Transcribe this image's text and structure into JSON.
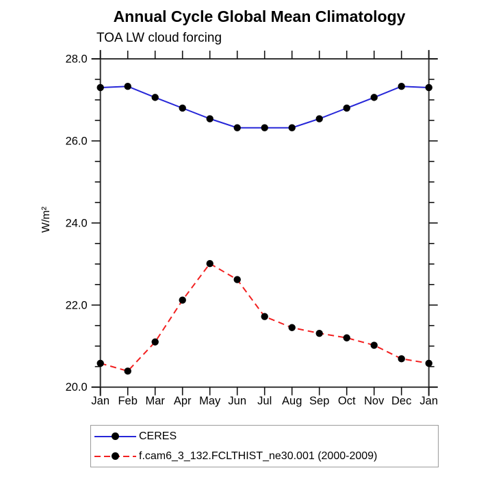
{
  "title": "Annual Cycle Global Mean Climatology",
  "subtitle": "TOA LW cloud forcing",
  "ylabel": "W/m²",
  "chart_data": {
    "type": "line",
    "categories": [
      "Jan",
      "Feb",
      "Mar",
      "Apr",
      "May",
      "Jun",
      "Jul",
      "Aug",
      "Sep",
      "Oct",
      "Nov",
      "Dec",
      "Jan"
    ],
    "series": [
      {
        "name": "CERES",
        "color": "#2626d8",
        "line_style": "solid",
        "values": [
          27.3,
          27.33,
          27.06,
          26.8,
          26.54,
          26.32,
          26.32,
          26.32,
          26.54,
          26.8,
          27.06,
          27.33,
          27.3
        ]
      },
      {
        "name": "f.cam6_3_132.FCLTHIST_ne30.001 (2000-2009)",
        "color": "#f22020",
        "line_style": "dashed",
        "values": [
          20.58,
          20.39,
          21.1,
          22.12,
          23.01,
          22.62,
          21.72,
          21.45,
          21.31,
          21.2,
          21.02,
          20.69,
          20.58
        ]
      }
    ],
    "marker": {
      "shape": "circle",
      "color": "#000000"
    },
    "xlabel": "",
    "ylabel": "W/m²",
    "ylim": [
      20.0,
      28.0
    ],
    "ytick_major_labels": [
      "20.0",
      "22.0",
      "24.0",
      "26.0",
      "28.0"
    ],
    "ytick_major_values": [
      20.0,
      22.0,
      24.0,
      26.0,
      28.0
    ],
    "ytick_minor_step": 0.5,
    "grid": "off",
    "legend_position": "bottom-left"
  },
  "legend": {
    "items": [
      {
        "label": "CERES"
      },
      {
        "label": "f.cam6_3_132.FCLTHIST_ne30.001 (2000-2009)"
      }
    ]
  }
}
